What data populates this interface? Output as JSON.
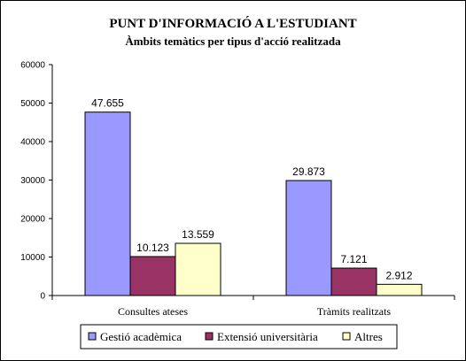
{
  "chart_data": {
    "type": "bar",
    "title": "PUNT D'INFORMACIÓ A L'ESTUDIANT",
    "subtitle": "Àmbits temàtics per tipus d'acció realitzada",
    "categories": [
      "Consultes ateses",
      "Tràmits realitzats"
    ],
    "series": [
      {
        "name": "Gestió acadèmica",
        "values": [
          47655,
          29873
        ],
        "labels": [
          "47.655",
          "29.873"
        ],
        "color": "#9999FF"
      },
      {
        "name": "Extensió universitària",
        "values": [
          10123,
          7121
        ],
        "labels": [
          "10.123",
          "7.121"
        ],
        "color": "#993366"
      },
      {
        "name": "Altres",
        "values": [
          13559,
          2912
        ],
        "labels": [
          "13.559",
          "2.912"
        ],
        "color": "#FFFFCC"
      }
    ],
    "ylim": [
      0,
      60000
    ],
    "yticks": [
      "0",
      "10000",
      "20000",
      "30000",
      "40000",
      "50000",
      "60000"
    ],
    "xlabel": "",
    "ylabel": "",
    "grid": false,
    "legend_position": "bottom"
  }
}
